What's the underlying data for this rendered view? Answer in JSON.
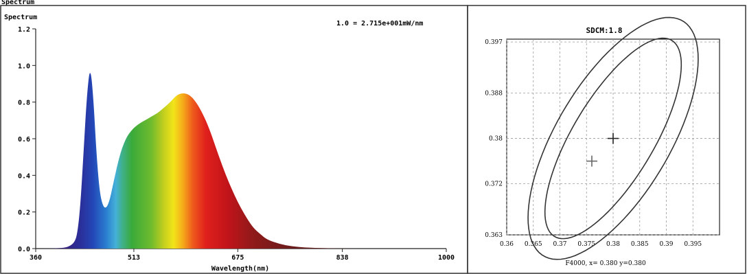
{
  "header_fragment": "Spectrum",
  "chart_data": [
    {
      "type": "area",
      "title": "Spectrum",
      "annotation": "1.0 = 2.715e+001mW/nm",
      "xlabel": "Wavelength(nm)",
      "ylabel": "",
      "xlim": [
        360,
        1000
      ],
      "ylim": [
        0,
        1.2
      ],
      "x_ticks": [
        360,
        513,
        675,
        838,
        1000
      ],
      "x_tick_labels": [
        "360",
        "513",
        "675",
        "838",
        "1000"
      ],
      "y_ticks": [
        0,
        0.2,
        0.4,
        0.6,
        0.8,
        1.0,
        1.2
      ],
      "y_tick_labels": [
        "0.0",
        "0.2",
        "0.4",
        "0.6",
        "0.8",
        "1.0",
        "1.2"
      ],
      "grid": false,
      "series": [
        {
          "x": [
            360,
            380,
            400,
            410,
            420,
            425,
            430,
            435,
            440,
            445,
            450,
            455,
            460,
            465,
            470,
            475,
            480,
            490,
            500,
            510,
            520,
            530,
            540,
            550,
            560,
            570,
            580,
            590,
            600,
            610,
            620,
            630,
            640,
            650,
            660,
            670,
            680,
            690,
            700,
            710,
            720,
            740,
            760,
            780,
            800,
            830,
            860
          ],
          "values": [
            0,
            0,
            0.003,
            0.008,
            0.03,
            0.08,
            0.25,
            0.55,
            0.85,
            1.0,
            0.82,
            0.5,
            0.3,
            0.23,
            0.22,
            0.26,
            0.34,
            0.5,
            0.6,
            0.65,
            0.68,
            0.7,
            0.72,
            0.74,
            0.77,
            0.8,
            0.84,
            0.85,
            0.84,
            0.8,
            0.74,
            0.66,
            0.56,
            0.46,
            0.37,
            0.29,
            0.22,
            0.16,
            0.11,
            0.08,
            0.05,
            0.025,
            0.012,
            0.006,
            0.003,
            0.001,
            0
          ]
        }
      ]
    },
    {
      "type": "scatter",
      "title": "SDCM:1.8",
      "footer": "F4000, x= 0.380 y=0.380",
      "xlim": [
        0.36,
        0.4
      ],
      "ylim": [
        0.363,
        0.3975
      ],
      "x_ticks": [
        0.36,
        0.365,
        0.37,
        0.375,
        0.38,
        0.385,
        0.39,
        0.395
      ],
      "x_tick_labels": [
        "0.36",
        "0.365",
        "0.37",
        "0.375",
        "0.38",
        "0.385",
        "0.39",
        "0.395"
      ],
      "y_ticks": [
        0.363,
        0.372,
        0.38,
        0.388,
        0.397
      ],
      "y_tick_labels": [
        "0.363",
        "0.372",
        "0.38",
        "0.388",
        "0.397"
      ],
      "grid": true,
      "ellipses": [
        {
          "cx": 0.38,
          "cy": 0.38,
          "rx": 0.0205,
          "ry": 0.0075,
          "angle_deg": -57
        },
        {
          "cx": 0.38,
          "cy": 0.38,
          "rx": 0.0245,
          "ry": 0.0105,
          "angle_deg": -57
        }
      ],
      "points": [
        {
          "x": 0.38,
          "y": 0.38,
          "color": "#222222"
        },
        {
          "x": 0.376,
          "y": 0.376,
          "color": "#666666"
        }
      ]
    }
  ]
}
